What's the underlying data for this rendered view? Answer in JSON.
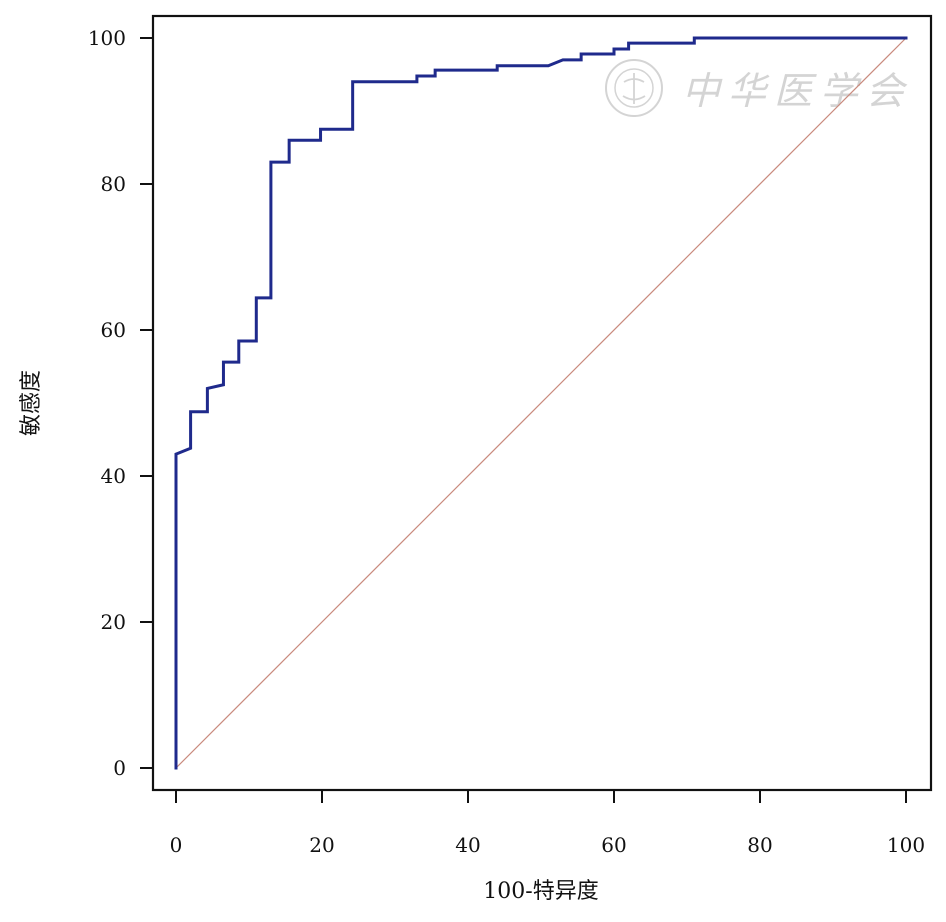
{
  "chart_data": {
    "type": "line",
    "title": "",
    "xlabel": "100-特异度",
    "ylabel": "敏感度",
    "xlim": [
      0,
      100
    ],
    "ylim": [
      0,
      100
    ],
    "xticks": [
      0,
      20,
      40,
      60,
      80,
      100
    ],
    "yticks": [
      0,
      20,
      40,
      60,
      80,
      100
    ],
    "x_tick_labels": [
      "0",
      "20",
      "40",
      "60",
      "80",
      "100"
    ],
    "y_tick_labels": [
      "0",
      "20",
      "40",
      "60",
      "80",
      "100"
    ],
    "grid": false,
    "legend": "none",
    "series": [
      {
        "color": "#1f2a8c",
        "style": "step",
        "x": [
          0,
          0,
          2,
          2,
          4.3,
          4.3,
          6.5,
          6.5,
          8.6,
          8.6,
          11,
          11,
          13,
          13,
          15.5,
          15.5,
          19.8,
          19.8,
          24.2,
          24.2,
          33,
          33,
          35.5,
          35.5,
          44,
          44,
          51,
          53,
          55.5,
          55.5,
          60,
          60,
          62,
          62,
          71,
          71,
          100
        ],
        "y": [
          0,
          43,
          43.8,
          48.8,
          48.8,
          52,
          52.5,
          55.6,
          55.6,
          58.5,
          58.5,
          64.4,
          64.4,
          83,
          83,
          86,
          86,
          87.5,
          87.5,
          94,
          94,
          94.8,
          94.8,
          95.6,
          95.6,
          96.2,
          96.2,
          97,
          97,
          97.8,
          97.8,
          98.5,
          98.5,
          99.3,
          99.3,
          100,
          100
        ]
      },
      {
        "color": "#c98a7d",
        "style": "reference",
        "x": [
          0,
          100
        ],
        "y": [
          0,
          100
        ]
      }
    ],
    "watermark_text": "中华医学会"
  }
}
